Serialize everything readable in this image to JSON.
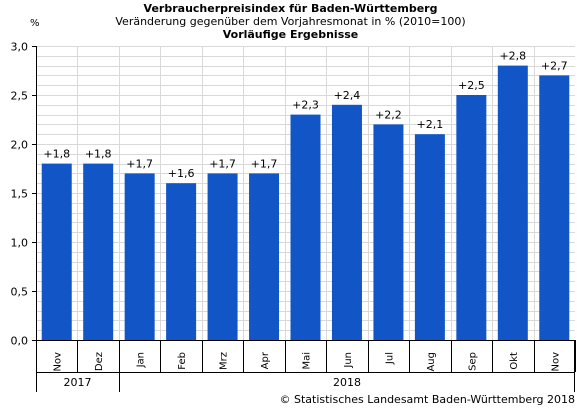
{
  "header": {
    "title": "Verbraucherpreisindex für Baden-Württemberg",
    "subtitle": "Veränderung gegenüber dem Vorjahresmonat in % (2010=100)",
    "subtitle2": "Vorläufige Ergebnisse"
  },
  "unit_label": "%",
  "source": "© Statistisches Landesamt Baden-Württemberg 2018",
  "colors": {
    "bar": "#1155c7",
    "grid": "#d9d9d9",
    "axis": "#000000"
  },
  "chart_data": {
    "type": "bar",
    "title": "Verbraucherpreisindex für Baden-Württemberg",
    "subtitle": "Veränderung gegenüber dem Vorjahresmonat in % (2010=100)",
    "ylabel": "%",
    "categories": [
      "Nov",
      "Dez",
      "Jan",
      "Feb",
      "Mrz",
      "Apr",
      "Mai",
      "Jun",
      "Jul",
      "Aug",
      "Sep",
      "Okt",
      "Nov"
    ],
    "values": [
      1.8,
      1.8,
      1.7,
      1.6,
      1.7,
      1.7,
      2.3,
      2.4,
      2.2,
      2.1,
      2.5,
      2.8,
      2.7
    ],
    "labels": [
      "+1,8",
      "+1,8",
      "+1,7",
      "+1,6",
      "+1,7",
      "+1,7",
      "+2,3",
      "+2,4",
      "+2,2",
      "+2,1",
      "+2,5",
      "+2,8",
      "+2,7"
    ],
    "year_groups": [
      {
        "label": "2017",
        "count": 2
      },
      {
        "label": "2018",
        "count": 11
      }
    ],
    "ylim": [
      0,
      3
    ],
    "yticks": [
      "0,0",
      "0,5",
      "1,0",
      "1,5",
      "2,0",
      "2,5",
      "3,0"
    ],
    "grid": true,
    "legend": "none"
  }
}
